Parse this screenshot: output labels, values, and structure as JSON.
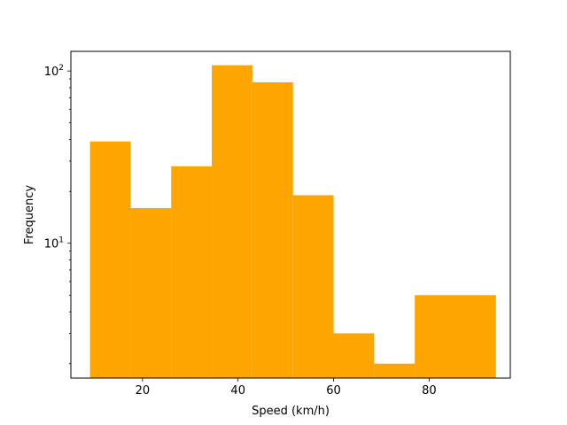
{
  "chart_data": {
    "type": "bar",
    "subtype": "histogram",
    "title": "",
    "xlabel": "Speed (km/h)",
    "ylabel": "Frequency",
    "yscale": "log",
    "xlim": [
      5,
      97
    ],
    "ylim": [
      1.65,
      130
    ],
    "bar_color": "#ffa500",
    "grid": false,
    "legend": "none",
    "bins": [
      {
        "x0": 9.0,
        "x1": 17.5,
        "count": 39
      },
      {
        "x0": 17.5,
        "x1": 26.0,
        "count": 16
      },
      {
        "x0": 26.0,
        "x1": 34.5,
        "count": 28
      },
      {
        "x0": 34.5,
        "x1": 43.0,
        "count": 108
      },
      {
        "x0": 43.0,
        "x1": 51.5,
        "count": 86
      },
      {
        "x0": 51.5,
        "x1": 60.0,
        "count": 19
      },
      {
        "x0": 60.0,
        "x1": 68.5,
        "count": 3
      },
      {
        "x0": 68.5,
        "x1": 77.0,
        "count": 2
      },
      {
        "x0": 77.0,
        "x1": 85.5,
        "count": 5
      },
      {
        "x0": 85.5,
        "x1": 94.0,
        "count": 5
      }
    ],
    "x_ticks": [
      20,
      40,
      60,
      80
    ],
    "y_ticks_major": [
      {
        "value": 10,
        "base": "10",
        "exp": "1"
      },
      {
        "value": 100,
        "base": "10",
        "exp": "2"
      }
    ],
    "y_ticks_minor": [
      2,
      3,
      4,
      5,
      6,
      7,
      8,
      9,
      20,
      30,
      40,
      50,
      60,
      70,
      80,
      90
    ]
  }
}
